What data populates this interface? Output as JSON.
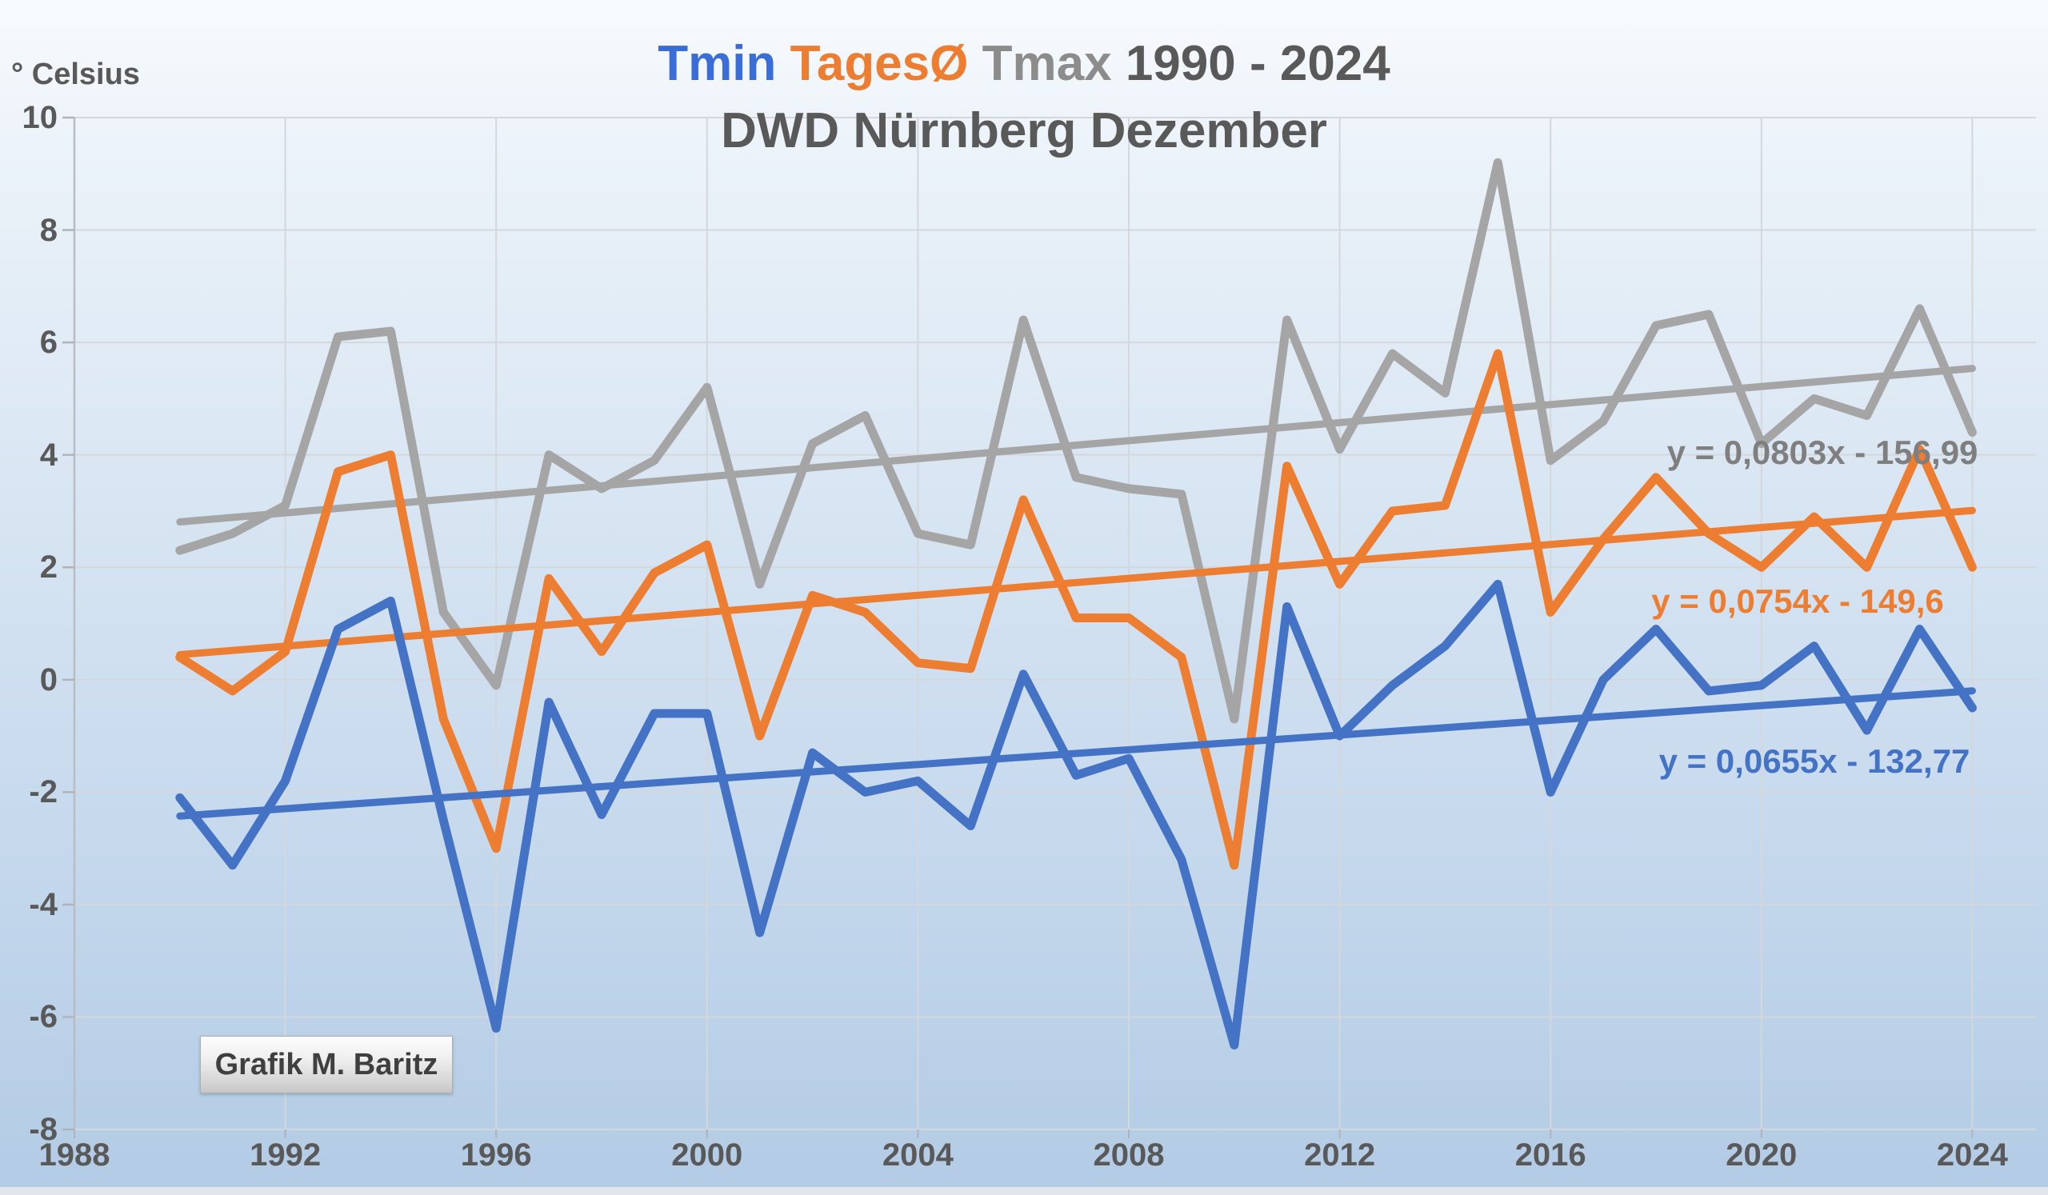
{
  "title": {
    "tmin": "Tmin",
    "tagesavg": "TagesØ",
    "tmax": "Tmax",
    "years": "1990 - 2024",
    "subtitle": "DWD Nürnberg Dezember"
  },
  "y_axis_unit": "° Celsius",
  "watermark": "Grafik M. Baritz",
  "colors": {
    "tmin": "#4472C4",
    "tagesavg": "#ED7D31",
    "tmax": "#A5A5A5",
    "title_tmin": "#3B6DD8",
    "title_tagesavg": "#ED7D31",
    "title_tmax": "#8C8C8C",
    "title_text": "#595959",
    "axis_text": "#595959",
    "equation_tmax_text": "#7F7F7F",
    "gridline": "#d4d7db",
    "axis_line": "#b9bdc3",
    "tick_mark": "#b0b4ba"
  },
  "equations": {
    "tmax": "y = 0,0803x - 156,99",
    "tagesavg": "y = 0,0754x - 149,6",
    "tmin": "y = 0,0655x - 132,77"
  },
  "chart_data": {
    "type": "line",
    "title": "Tmin TagesØ Tmax 1990 - 2024 — DWD Nürnberg Dezember",
    "xlabel": "",
    "ylabel": "° Celsius",
    "xlim": [
      1988,
      2024
    ],
    "ylim": [
      -8,
      10
    ],
    "grid": true,
    "legend_position": "none (colored title acts as legend)",
    "x_ticks": [
      1988,
      1992,
      1996,
      2000,
      2004,
      2008,
      2012,
      2016,
      2020,
      2024
    ],
    "y_ticks": [
      10,
      8,
      6,
      4,
      2,
      0,
      -2,
      -4,
      -6,
      -8
    ],
    "x": [
      1990,
      1991,
      1992,
      1993,
      1994,
      1995,
      1996,
      1997,
      1998,
      1999,
      2000,
      2001,
      2002,
      2003,
      2004,
      2005,
      2006,
      2007,
      2008,
      2009,
      2010,
      2011,
      2012,
      2013,
      2014,
      2015,
      2016,
      2017,
      2018,
      2019,
      2020,
      2021,
      2022,
      2023,
      2024
    ],
    "series": [
      {
        "name": "Tmax",
        "color_key": "tmax",
        "values": [
          2.3,
          2.6,
          3.1,
          6.1,
          6.2,
          1.2,
          -0.1,
          4.0,
          3.4,
          3.9,
          5.2,
          1.7,
          4.2,
          4.7,
          2.6,
          2.4,
          6.4,
          3.6,
          3.4,
          3.3,
          -0.7,
          6.4,
          4.1,
          5.8,
          5.1,
          9.2,
          3.9,
          4.6,
          6.3,
          6.5,
          4.2,
          5.0,
          4.7,
          6.6,
          4.4
        ]
      },
      {
        "name": "TagesØ",
        "color_key": "tagesavg",
        "values": [
          0.4,
          -0.2,
          0.5,
          3.7,
          4.0,
          -0.7,
          -3.0,
          1.8,
          0.5,
          1.9,
          2.4,
          -1.0,
          1.5,
          1.2,
          0.3,
          0.2,
          3.2,
          1.1,
          1.1,
          0.4,
          -3.3,
          3.8,
          1.7,
          3.0,
          3.1,
          5.8,
          1.2,
          2.5,
          3.6,
          2.6,
          2.0,
          2.9,
          2.0,
          4.1,
          2.0
        ]
      },
      {
        "name": "Tmin",
        "color_key": "tmin",
        "values": [
          -2.1,
          -3.3,
          -1.8,
          0.9,
          1.4,
          -2.5,
          -6.2,
          -0.4,
          -2.4,
          -0.6,
          -0.6,
          -4.5,
          -1.3,
          -2.0,
          -1.8,
          -2.6,
          0.1,
          -1.7,
          -1.4,
          -3.2,
          -6.5,
          1.3,
          -1.0,
          -0.1,
          0.6,
          1.7,
          -2.0,
          0.0,
          0.9,
          -0.2,
          -0.1,
          0.6,
          -0.9,
          0.9,
          -0.5
        ]
      }
    ],
    "trendlines": [
      {
        "series": "Tmax",
        "slope": 0.0803,
        "intercept": -156.99,
        "label": "y = 0,0803x - 156,99",
        "x_start": 1990,
        "x_end": 2024
      },
      {
        "series": "TagesØ",
        "slope": 0.0754,
        "intercept": -149.6,
        "label": "y = 0,0754x - 149,6",
        "x_start": 1990,
        "x_end": 2024
      },
      {
        "series": "Tmin",
        "slope": 0.0655,
        "intercept": -132.77,
        "label": "y = 0,0655x - 132,77",
        "x_start": 1990,
        "x_end": 2024
      }
    ]
  }
}
